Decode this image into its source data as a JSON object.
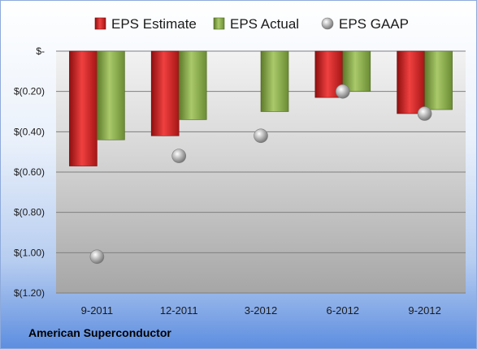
{
  "company_label": "American Superconductor",
  "chart_data": {
    "type": "bar",
    "categories": [
      "9-2011",
      "12-2011",
      "3-2012",
      "6-2012",
      "9-2012"
    ],
    "series": [
      {
        "name": "EPS Estimate",
        "kind": "bar",
        "color": "#d42020",
        "values": [
          -0.57,
          -0.42,
          null,
          -0.23,
          -0.31
        ]
      },
      {
        "name": "EPS Actual",
        "kind": "bar",
        "color": "#8db04a",
        "values": [
          -0.44,
          -0.34,
          -0.3,
          -0.2,
          -0.29
        ]
      },
      {
        "name": "EPS GAAP",
        "kind": "scatter",
        "color": "#a9a9a9",
        "values": [
          -1.02,
          -0.52,
          -0.42,
          -0.2,
          -0.31
        ]
      }
    ],
    "yticks": [
      {
        "value": 0,
        "label": "$-"
      },
      {
        "value": -0.2,
        "label": "$(0.20)"
      },
      {
        "value": -0.4,
        "label": "$(0.40)"
      },
      {
        "value": -0.6,
        "label": "$(0.60)"
      },
      {
        "value": -0.8,
        "label": "$(0.80)"
      },
      {
        "value": -1.0,
        "label": "$(1.00)"
      },
      {
        "value": -1.2,
        "label": "$(1.20)"
      }
    ],
    "ylim": [
      -1.2,
      0
    ],
    "grid": true,
    "legend_position": "top"
  }
}
